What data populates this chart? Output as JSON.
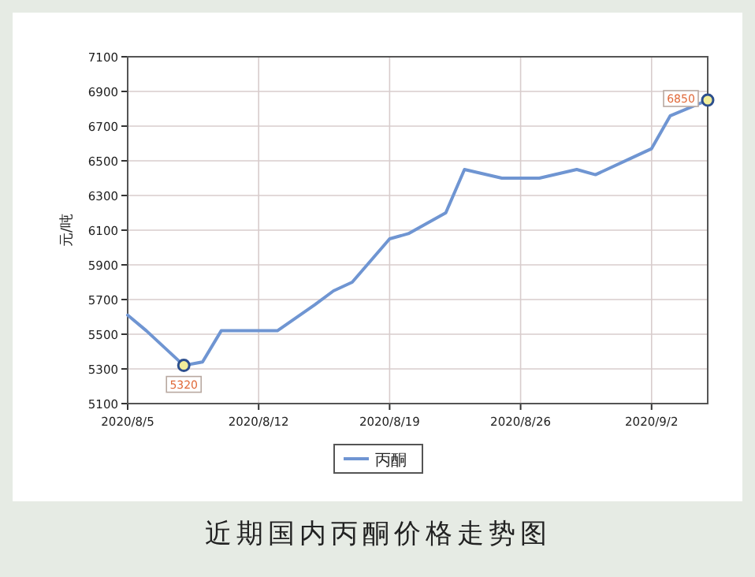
{
  "chart_data": {
    "type": "line",
    "title": "近期国内丙酮价格走势图",
    "ylabel": "元/吨",
    "x": [
      "2020-08-05",
      "2020-08-06",
      "2020-08-08",
      "2020-08-09",
      "2020-08-10",
      "2020-08-13",
      "2020-08-15",
      "2020-08-16",
      "2020-08-17",
      "2020-08-19",
      "2020-08-20",
      "2020-08-22",
      "2020-08-23",
      "2020-08-25",
      "2020-08-27",
      "2020-08-29",
      "2020-08-30",
      "2020-09-01",
      "2020-09-02",
      "2020-09-03",
      "2020-09-05"
    ],
    "series": [
      {
        "name": "丙酮",
        "color": "#6f95d2",
        "values": [
          5610,
          5520,
          5320,
          5340,
          5520,
          5520,
          5670,
          5750,
          5800,
          6050,
          6080,
          6200,
          6450,
          6400,
          6400,
          6450,
          6420,
          6520,
          6570,
          6760,
          6850
        ]
      }
    ],
    "xlim": [
      "2020-08-05",
      "2020-09-05"
    ],
    "xticks": [
      {
        "value": "2020-08-05",
        "label": "2020/8/5"
      },
      {
        "value": "2020-08-12",
        "label": "2020/8/12"
      },
      {
        "value": "2020-08-19",
        "label": "2020/8/19"
      },
      {
        "value": "2020-08-26",
        "label": "2020/8/26"
      },
      {
        "value": "2020-09-02",
        "label": "2020/9/2"
      }
    ],
    "ylim": [
      5100,
      7100
    ],
    "yticks": [
      5100,
      5300,
      5500,
      5700,
      5900,
      6100,
      6300,
      6500,
      6700,
      6900,
      7100
    ],
    "annotations": [
      {
        "text": "5320",
        "x": "2020-08-08",
        "y": 5320
      },
      {
        "text": "6850",
        "x": "2020-09-05",
        "y": 6850
      }
    ],
    "grid": true,
    "legend": "bottom",
    "marker": "none",
    "line_style": "solid"
  }
}
